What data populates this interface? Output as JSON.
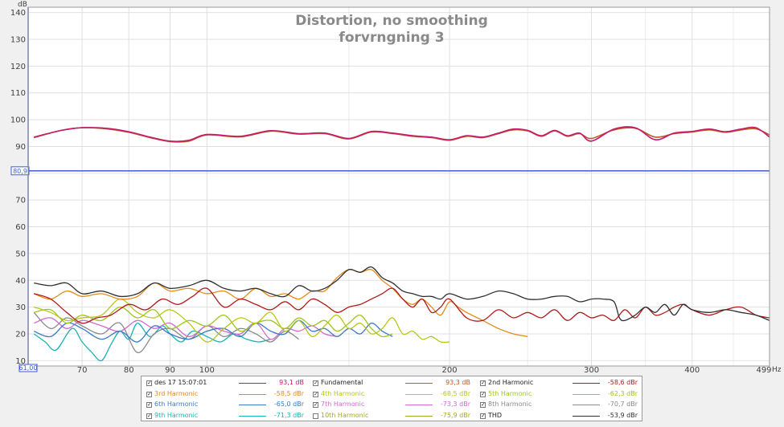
{
  "chart_data": {
    "type": "line",
    "title": "Distortion, no smoothing",
    "subtitle": "forvrngning 3",
    "ylabel": "dB",
    "xunit": "Hz",
    "x_scale": "log",
    "xlim": [
      60,
      499
    ],
    "ylim": [
      8,
      142
    ],
    "grid": true,
    "x_ticks": [
      70,
      80,
      90,
      100,
      200,
      300,
      400
    ],
    "x_tick_labels": [
      "70",
      "80",
      "90",
      "100",
      "200",
      "300",
      "400"
    ],
    "x_start_label": "61,00",
    "x_end_label": "499",
    "y_ticks": [
      10,
      20,
      30,
      40,
      50,
      60,
      70,
      90,
      100,
      110,
      120,
      130,
      140
    ],
    "y_tick_labels": [
      "10",
      "20",
      "30",
      "40",
      "50",
      "60",
      "70",
      "90",
      "100",
      "110",
      "120",
      "130",
      "140"
    ],
    "cursor_level": 80.9,
    "cursor_label": "80,9",
    "series": [
      {
        "name": "des 17 15:07:01",
        "color": "#c71a6b",
        "value": "93,1 dB",
        "checked": true,
        "x": [
          61,
          66,
          70,
          75,
          80,
          85,
          90,
          95,
          100,
          110,
          120,
          130,
          140,
          150,
          160,
          170,
          180,
          190,
          200,
          210,
          220,
          230,
          240,
          250,
          260,
          270,
          280,
          290,
          300,
          320,
          340,
          360,
          380,
          400,
          420,
          440,
          460,
          480,
          499
        ],
        "y": [
          93.5,
          96,
          97,
          96.8,
          95.5,
          93.5,
          92,
          92.3,
          94.5,
          93.8,
          95.9,
          94.8,
          95,
          93,
          95.6,
          95,
          94,
          93.5,
          92.5,
          94,
          93.5,
          95,
          96.5,
          96,
          94,
          96,
          94,
          95,
          92,
          96.5,
          97,
          92.5,
          95,
          95.6,
          96.5,
          95.5,
          96.5,
          97,
          93.5
        ]
      },
      {
        "name": "Fundamental",
        "color": "#b35a2e",
        "value": "93,3 dB",
        "checked": true,
        "x": [
          61,
          66,
          70,
          75,
          80,
          85,
          90,
          95,
          100,
          110,
          120,
          130,
          140,
          150,
          160,
          170,
          180,
          190,
          200,
          210,
          220,
          230,
          240,
          250,
          260,
          270,
          280,
          290,
          300,
          320,
          340,
          360,
          380,
          400,
          420,
          440,
          460,
          480,
          499
        ],
        "y": [
          93.3,
          96,
          97,
          96.6,
          95.3,
          93.3,
          91.8,
          92,
          94.3,
          93.6,
          95.7,
          94.6,
          94.8,
          92.8,
          95.4,
          94.8,
          93.8,
          93.3,
          92.3,
          93.8,
          93.3,
          94.8,
          96.2,
          95.8,
          93.8,
          95.8,
          93.8,
          94.8,
          93,
          96.2,
          96.8,
          93.5,
          94.8,
          95.4,
          96.2,
          95.3,
          96.2,
          96.6,
          94.3
        ]
      },
      {
        "name": "2nd Harmonic",
        "color": "#b01a1a",
        "value": "-58,6 dBr",
        "checked": true,
        "x": [
          61,
          64,
          67,
          70,
          73,
          76,
          80,
          84,
          88,
          92,
          96,
          100,
          105,
          110,
          115,
          120,
          125,
          130,
          135,
          140,
          145,
          150,
          155,
          160,
          165,
          170,
          175,
          180,
          185,
          190,
          195,
          200,
          210,
          220,
          230,
          240,
          250,
          260,
          270,
          280,
          290,
          300,
          310,
          320,
          330,
          340,
          350,
          360,
          370,
          380,
          390,
          400,
          420,
          440,
          460,
          480,
          499
        ],
        "y": [
          35,
          33,
          28,
          24,
          26,
          27,
          31,
          29,
          33,
          31,
          34,
          37,
          30,
          33,
          31,
          29,
          32,
          29,
          33,
          31,
          28,
          30,
          31,
          33,
          35,
          37,
          33,
          30,
          33,
          28,
          30,
          33,
          26,
          25,
          29,
          26,
          28,
          26,
          29,
          25,
          28,
          26,
          27,
          25,
          29,
          26,
          30,
          27,
          28,
          30,
          31,
          29,
          27,
          29,
          30,
          27,
          26
        ]
      },
      {
        "name": "3rd Harmonic",
        "color": "#e28b1a",
        "value": "-58,5 dBr",
        "checked": true,
        "x": [
          61,
          64,
          67,
          70,
          74,
          78,
          82,
          86,
          90,
          95,
          100,
          105,
          110,
          115,
          120,
          125,
          130,
          135,
          140,
          145,
          150,
          155,
          160,
          165,
          170,
          175,
          180,
          185,
          190,
          195,
          200,
          205,
          210,
          220,
          230,
          240,
          250
        ],
        "y": [
          35,
          33,
          36,
          34,
          35,
          33,
          34,
          39,
          36,
          37,
          35,
          36,
          33,
          37,
          34,
          35,
          33,
          36,
          36,
          41,
          44,
          43,
          44,
          40,
          37,
          33,
          31,
          33,
          30,
          27,
          32,
          30,
          28,
          25,
          22,
          20,
          19
        ]
      },
      {
        "name": "4th Harmonic",
        "color": "#b8c71a",
        "value": "-68,5 dBr",
        "checked": true,
        "x": [
          61,
          64,
          67,
          70,
          74,
          78,
          82,
          86,
          90,
          95,
          100,
          105,
          110,
          115,
          120,
          125,
          130,
          135,
          140,
          145,
          150,
          155,
          160,
          165,
          170,
          175,
          180,
          185,
          190,
          195,
          200
        ],
        "y": [
          30,
          28,
          25,
          26,
          27,
          33,
          28,
          26,
          29,
          24,
          17,
          22,
          26,
          24,
          28,
          21,
          25,
          19,
          23,
          27,
          22,
          24,
          20,
          22,
          26,
          20,
          21,
          18,
          19,
          17,
          17
        ]
      },
      {
        "name": "5th Harmonic",
        "color": "#9cc71a",
        "value": "-62,3 dBr",
        "checked": true,
        "x": [
          61,
          64,
          67,
          70,
          74,
          78,
          82,
          86,
          90,
          95,
          100,
          105,
          110,
          115,
          120,
          125,
          130,
          135,
          140,
          145,
          150,
          155,
          160,
          165,
          170
        ],
        "y": [
          28,
          29,
          24,
          27,
          25,
          30,
          26,
          29,
          22,
          25,
          23,
          27,
          21,
          24,
          25,
          22,
          26,
          23,
          25,
          21,
          24,
          27,
          22,
          19,
          20
        ]
      },
      {
        "name": "6th Harmonic",
        "color": "#3b7ac7",
        "value": "-65,0 dBr",
        "checked": true,
        "x": [
          61,
          64,
          67,
          70,
          74,
          78,
          82,
          86,
          90,
          95,
          100,
          105,
          110,
          115,
          120,
          125,
          130,
          135,
          140,
          145,
          150,
          155,
          160,
          165,
          170
        ],
        "y": [
          21,
          19,
          24,
          22,
          18,
          21,
          17,
          23,
          20,
          18,
          21,
          22,
          19,
          24,
          21,
          20,
          25,
          21,
          22,
          19,
          22,
          20,
          24,
          21,
          19
        ]
      },
      {
        "name": "7th Harmonic",
        "color": "#d36ad3",
        "value": "-73,3 dBr",
        "checked": true,
        "x": [
          61,
          64,
          67,
          70,
          74,
          78,
          82,
          86,
          90,
          95,
          100,
          105,
          110,
          115,
          120,
          125,
          130,
          135,
          140,
          145
        ],
        "y": [
          24,
          26,
          22,
          25,
          23,
          21,
          25,
          22,
          24,
          19,
          23,
          21,
          20,
          24,
          18,
          22,
          21,
          23,
          20,
          19
        ]
      },
      {
        "name": "8th Harmonic",
        "color": "#8a8a8a",
        "value": "-70,7 dBr",
        "checked": true,
        "x": [
          61,
          64,
          67,
          70,
          74,
          78,
          82,
          86,
          90,
          95,
          100,
          105,
          110,
          115,
          120,
          125,
          130
        ],
        "y": [
          28,
          22,
          26,
          23,
          20,
          24,
          13,
          20,
          22,
          18,
          23,
          19,
          22,
          20,
          17,
          21,
          18
        ]
      },
      {
        "name": "9th Harmonic",
        "color": "#1ab3b3",
        "value": "-71,3 dBr",
        "checked": true,
        "x": [
          61,
          63,
          65,
          68,
          70,
          72,
          74,
          76,
          78,
          80,
          82,
          85,
          88,
          90,
          93,
          96,
          100,
          104,
          108,
          112,
          116,
          120
        ],
        "y": [
          20,
          17,
          14,
          22,
          17,
          13,
          10,
          16,
          21,
          18,
          24,
          19,
          23,
          20,
          17,
          21,
          19,
          17,
          20,
          18,
          17,
          18
        ]
      },
      {
        "name": "10th Harmonic",
        "color": "#a8a81a",
        "value": "-75,9 dBr",
        "checked": false,
        "x": [],
        "y": []
      },
      {
        "name": "THD",
        "color": "#303030",
        "value": "-53,9 dBr",
        "checked": true,
        "x": [
          61,
          64,
          67,
          70,
          74,
          78,
          82,
          86,
          90,
          95,
          100,
          105,
          110,
          115,
          120,
          125,
          130,
          135,
          140,
          145,
          150,
          155,
          160,
          165,
          170,
          175,
          180,
          185,
          190,
          195,
          200,
          210,
          220,
          230,
          240,
          250,
          260,
          270,
          280,
          290,
          300,
          310,
          320,
          325,
          330,
          340,
          350,
          360,
          370,
          380,
          390,
          400,
          420,
          440,
          460,
          480,
          499
        ],
        "y": [
          39,
          38,
          39,
          35,
          36,
          34,
          35,
          39,
          37,
          38,
          40,
          37,
          36,
          37,
          35,
          34,
          38,
          36,
          37,
          40,
          44,
          43,
          45,
          41,
          39,
          36,
          35,
          34,
          34,
          33,
          35,
          33,
          34,
          36,
          35,
          33,
          33,
          34,
          34,
          32,
          33,
          33,
          32,
          26,
          25,
          27,
          30,
          28,
          31,
          27,
          31,
          29,
          28,
          29,
          28,
          27,
          25
        ]
      }
    ]
  }
}
